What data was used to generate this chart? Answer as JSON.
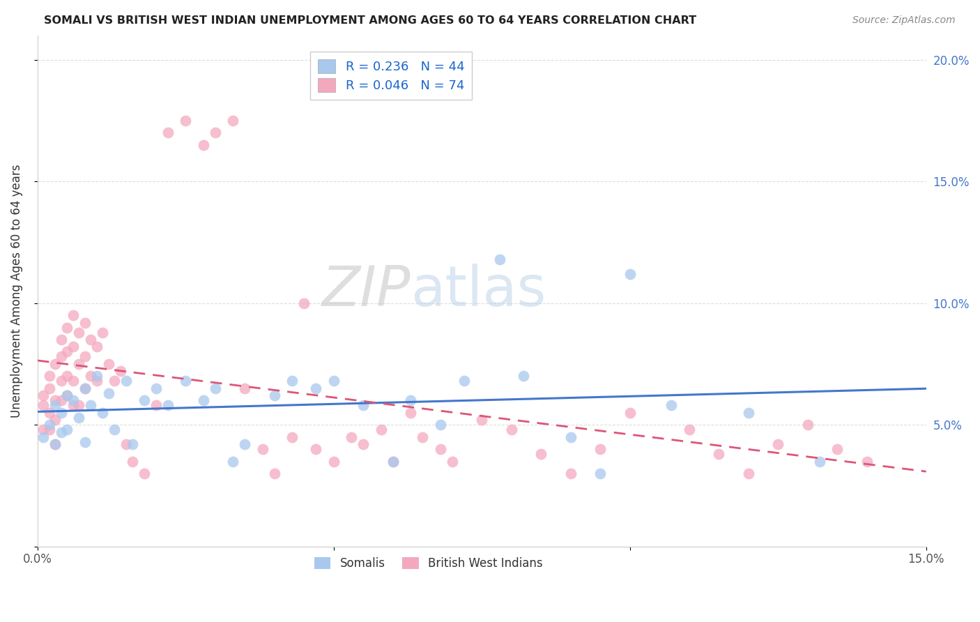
{
  "title": "SOMALI VS BRITISH WEST INDIAN UNEMPLOYMENT AMONG AGES 60 TO 64 YEARS CORRELATION CHART",
  "source": "Source: ZipAtlas.com",
  "ylabel": "Unemployment Among Ages 60 to 64 years",
  "xlim": [
    0.0,
    0.15
  ],
  "ylim": [
    0.0,
    0.21
  ],
  "x_ticks": [
    0.0,
    0.05,
    0.1,
    0.15
  ],
  "x_tick_labels": [
    "0.0%",
    "",
    "",
    "15.0%"
  ],
  "y_ticks": [
    0.0,
    0.05,
    0.1,
    0.15,
    0.2
  ],
  "y_tick_labels_right": [
    "",
    "5.0%",
    "10.0%",
    "15.0%",
    "20.0%"
  ],
  "somali_R": 0.236,
  "somali_N": 44,
  "bwi_R": 0.046,
  "bwi_N": 74,
  "somali_color": "#a8c8ee",
  "bwi_color": "#f4a8be",
  "somali_line_color": "#4477cc",
  "bwi_line_color": "#dd5577",
  "watermark_zip": "ZIP",
  "watermark_atlas": "atlas",
  "grid_color": "#dddddd",
  "somali_x": [
    0.001,
    0.002,
    0.003,
    0.003,
    0.004,
    0.004,
    0.005,
    0.005,
    0.006,
    0.007,
    0.008,
    0.008,
    0.009,
    0.01,
    0.011,
    0.012,
    0.013,
    0.015,
    0.016,
    0.018,
    0.02,
    0.022,
    0.025,
    0.028,
    0.03,
    0.033,
    0.035,
    0.04,
    0.043,
    0.047,
    0.05,
    0.055,
    0.06,
    0.063,
    0.068,
    0.072,
    0.078,
    0.082,
    0.09,
    0.095,
    0.1,
    0.107,
    0.12,
    0.132
  ],
  "somali_y": [
    0.045,
    0.05,
    0.042,
    0.058,
    0.055,
    0.047,
    0.062,
    0.048,
    0.06,
    0.053,
    0.065,
    0.043,
    0.058,
    0.07,
    0.055,
    0.063,
    0.048,
    0.068,
    0.042,
    0.06,
    0.065,
    0.058,
    0.068,
    0.06,
    0.065,
    0.035,
    0.042,
    0.062,
    0.068,
    0.065,
    0.068,
    0.058,
    0.035,
    0.06,
    0.05,
    0.068,
    0.118,
    0.07,
    0.045,
    0.03,
    0.112,
    0.058,
    0.055,
    0.035
  ],
  "bwi_x": [
    0.001,
    0.001,
    0.001,
    0.002,
    0.002,
    0.002,
    0.002,
    0.003,
    0.003,
    0.003,
    0.003,
    0.004,
    0.004,
    0.004,
    0.004,
    0.005,
    0.005,
    0.005,
    0.005,
    0.006,
    0.006,
    0.006,
    0.006,
    0.007,
    0.007,
    0.007,
    0.008,
    0.008,
    0.008,
    0.009,
    0.009,
    0.01,
    0.01,
    0.011,
    0.012,
    0.013,
    0.014,
    0.015,
    0.016,
    0.018,
    0.02,
    0.022,
    0.025,
    0.028,
    0.03,
    0.033,
    0.035,
    0.038,
    0.04,
    0.043,
    0.045,
    0.047,
    0.05,
    0.053,
    0.055,
    0.058,
    0.06,
    0.063,
    0.065,
    0.068,
    0.07,
    0.075,
    0.08,
    0.085,
    0.09,
    0.095,
    0.1,
    0.11,
    0.115,
    0.12,
    0.125,
    0.13,
    0.135,
    0.14
  ],
  "bwi_y": [
    0.062,
    0.058,
    0.048,
    0.07,
    0.055,
    0.065,
    0.048,
    0.075,
    0.06,
    0.052,
    0.042,
    0.085,
    0.078,
    0.068,
    0.06,
    0.09,
    0.08,
    0.07,
    0.062,
    0.095,
    0.082,
    0.068,
    0.058,
    0.088,
    0.075,
    0.058,
    0.092,
    0.078,
    0.065,
    0.085,
    0.07,
    0.082,
    0.068,
    0.088,
    0.075,
    0.068,
    0.072,
    0.042,
    0.035,
    0.03,
    0.058,
    0.17,
    0.175,
    0.165,
    0.17,
    0.175,
    0.065,
    0.04,
    0.03,
    0.045,
    0.1,
    0.04,
    0.035,
    0.045,
    0.042,
    0.048,
    0.035,
    0.055,
    0.045,
    0.04,
    0.035,
    0.052,
    0.048,
    0.038,
    0.03,
    0.04,
    0.055,
    0.048,
    0.038,
    0.03,
    0.042,
    0.05,
    0.04,
    0.035
  ]
}
